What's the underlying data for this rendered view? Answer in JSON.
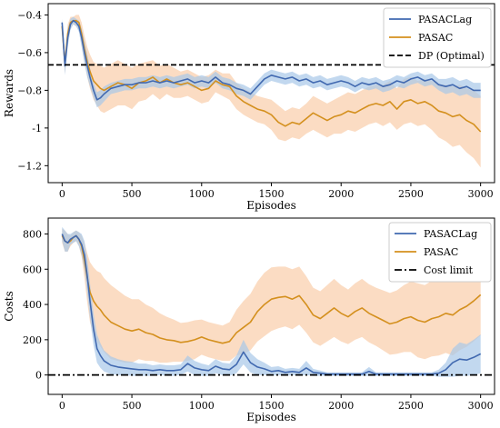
{
  "colors": {
    "pasaclag": "#4169b0",
    "pasac": "#d4901e",
    "pasaclag_band": "#a8c8e8",
    "pasac_band": "#f9c9a3"
  },
  "chart_data": [
    {
      "type": "line",
      "xlabel": "Episodes",
      "ylabel": "Rewards",
      "xlim": [
        -100,
        3100
      ],
      "ylim": [
        -1.29,
        -0.34
      ],
      "xticks": [
        0,
        500,
        1000,
        1500,
        2000,
        2500,
        3000
      ],
      "yticks": [
        -1.2,
        -1.0,
        -0.8,
        -0.6,
        -0.4
      ],
      "grid": false,
      "legend_position": "top-right",
      "series": [
        {
          "name": "PASACLag",
          "color_key": "pasaclag",
          "x": [
            0,
            20,
            40,
            60,
            80,
            100,
            120,
            140,
            160,
            180,
            200,
            225,
            250,
            275,
            300,
            350,
            400,
            450,
            500,
            550,
            600,
            650,
            700,
            750,
            800,
            850,
            900,
            950,
            1000,
            1050,
            1100,
            1150,
            1200,
            1250,
            1300,
            1350,
            1400,
            1450,
            1500,
            1550,
            1600,
            1650,
            1700,
            1750,
            1800,
            1850,
            1900,
            1950,
            2000,
            2050,
            2100,
            2150,
            2200,
            2250,
            2300,
            2350,
            2400,
            2450,
            2500,
            2550,
            2600,
            2650,
            2700,
            2750,
            2800,
            2850,
            2900,
            2950,
            3000
          ],
          "y": [
            -0.44,
            -0.67,
            -0.52,
            -0.45,
            -0.43,
            -0.44,
            -0.46,
            -0.52,
            -0.6,
            -0.67,
            -0.73,
            -0.8,
            -0.85,
            -0.84,
            -0.82,
            -0.79,
            -0.78,
            -0.77,
            -0.77,
            -0.76,
            -0.76,
            -0.75,
            -0.76,
            -0.75,
            -0.76,
            -0.75,
            -0.74,
            -0.76,
            -0.75,
            -0.76,
            -0.73,
            -0.76,
            -0.77,
            -0.79,
            -0.8,
            -0.82,
            -0.78,
            -0.74,
            -0.72,
            -0.73,
            -0.74,
            -0.73,
            -0.75,
            -0.74,
            -0.76,
            -0.75,
            -0.77,
            -0.76,
            -0.75,
            -0.76,
            -0.78,
            -0.76,
            -0.77,
            -0.76,
            -0.78,
            -0.77,
            -0.75,
            -0.76,
            -0.74,
            -0.73,
            -0.75,
            -0.74,
            -0.77,
            -0.78,
            -0.77,
            -0.79,
            -0.78,
            -0.8,
            -0.8
          ],
          "band": [
            0.02,
            0.05,
            0.05,
            0.03,
            0.02,
            0.02,
            0.03,
            0.05,
            0.06,
            0.06,
            0.05,
            0.04,
            0.04,
            0.04,
            0.04,
            0.03,
            0.03,
            0.03,
            0.03,
            0.03,
            0.03,
            0.03,
            0.03,
            0.03,
            0.03,
            0.03,
            0.03,
            0.03,
            0.03,
            0.03,
            0.03,
            0.03,
            0.03,
            0.03,
            0.03,
            0.03,
            0.03,
            0.03,
            0.03,
            0.03,
            0.03,
            0.03,
            0.03,
            0.03,
            0.03,
            0.03,
            0.03,
            0.03,
            0.03,
            0.03,
            0.03,
            0.03,
            0.03,
            0.03,
            0.03,
            0.03,
            0.03,
            0.03,
            0.03,
            0.03,
            0.03,
            0.03,
            0.03,
            0.04,
            0.04,
            0.04,
            0.04,
            0.04,
            0.04
          ]
        },
        {
          "name": "PASAC",
          "color_key": "pasac",
          "x": [
            0,
            20,
            40,
            60,
            80,
            100,
            120,
            140,
            160,
            180,
            200,
            225,
            250,
            275,
            300,
            350,
            400,
            450,
            500,
            550,
            600,
            650,
            700,
            750,
            800,
            850,
            900,
            950,
            1000,
            1050,
            1100,
            1150,
            1200,
            1250,
            1300,
            1350,
            1400,
            1450,
            1500,
            1550,
            1600,
            1650,
            1700,
            1750,
            1800,
            1850,
            1900,
            1950,
            2000,
            2050,
            2100,
            2150,
            2200,
            2250,
            2300,
            2350,
            2400,
            2450,
            2500,
            2550,
            2600,
            2650,
            2700,
            2750,
            2800,
            2850,
            2900,
            2950,
            3000
          ],
          "y": [
            -0.46,
            -0.66,
            -0.5,
            -0.44,
            -0.43,
            -0.43,
            -0.44,
            -0.5,
            -0.58,
            -0.65,
            -0.7,
            -0.75,
            -0.77,
            -0.79,
            -0.8,
            -0.78,
            -0.76,
            -0.77,
            -0.79,
            -0.76,
            -0.75,
            -0.73,
            -0.76,
            -0.74,
            -0.76,
            -0.77,
            -0.76,
            -0.78,
            -0.8,
            -0.79,
            -0.75,
            -0.77,
            -0.78,
            -0.83,
            -0.86,
            -0.88,
            -0.9,
            -0.91,
            -0.93,
            -0.97,
            -0.99,
            -0.97,
            -0.98,
            -0.95,
            -0.92,
            -0.94,
            -0.96,
            -0.94,
            -0.93,
            -0.91,
            -0.92,
            -0.9,
            -0.88,
            -0.87,
            -0.88,
            -0.86,
            -0.9,
            -0.86,
            -0.85,
            -0.87,
            -0.86,
            -0.88,
            -0.91,
            -0.92,
            -0.94,
            -0.93,
            -0.96,
            -0.98,
            -1.02
          ],
          "band": [
            0.02,
            0.05,
            0.05,
            0.03,
            0.02,
            0.03,
            0.04,
            0.06,
            0.07,
            0.08,
            0.09,
            0.1,
            0.11,
            0.12,
            0.12,
            0.12,
            0.12,
            0.11,
            0.11,
            0.1,
            0.1,
            0.09,
            0.09,
            0.08,
            0.08,
            0.07,
            0.07,
            0.07,
            0.07,
            0.07,
            0.06,
            0.06,
            0.07,
            0.07,
            0.07,
            0.07,
            0.07,
            0.07,
            0.08,
            0.09,
            0.08,
            0.08,
            0.08,
            0.08,
            0.09,
            0.09,
            0.09,
            0.09,
            0.1,
            0.1,
            0.1,
            0.1,
            0.1,
            0.1,
            0.11,
            0.11,
            0.11,
            0.12,
            0.12,
            0.12,
            0.12,
            0.13,
            0.14,
            0.15,
            0.16,
            0.16,
            0.17,
            0.18,
            0.19
          ]
        }
      ],
      "reference_line": {
        "name": "DP (Optimal)",
        "y": -0.665,
        "style": "dashed"
      }
    },
    {
      "type": "line",
      "xlabel": "Episodes",
      "ylabel": "Costs",
      "xlim": [
        -100,
        3100
      ],
      "ylim": [
        -110,
        890
      ],
      "xticks": [
        0,
        500,
        1000,
        1500,
        2000,
        2500,
        3000
      ],
      "yticks": [
        0,
        200,
        400,
        600,
        800
      ],
      "grid": false,
      "legend_position": "top-right",
      "series": [
        {
          "name": "PASACLag",
          "color_key": "pasaclag",
          "x": [
            0,
            20,
            40,
            60,
            80,
            100,
            120,
            140,
            160,
            180,
            200,
            225,
            250,
            275,
            300,
            350,
            400,
            450,
            500,
            550,
            600,
            650,
            700,
            750,
            800,
            850,
            900,
            950,
            1000,
            1050,
            1100,
            1150,
            1200,
            1250,
            1300,
            1350,
            1400,
            1450,
            1500,
            1550,
            1600,
            1650,
            1700,
            1750,
            1800,
            1850,
            1900,
            1950,
            2000,
            2050,
            2100,
            2150,
            2200,
            2250,
            2300,
            2350,
            2400,
            2450,
            2500,
            2550,
            2600,
            2650,
            2700,
            2750,
            2800,
            2850,
            2900,
            2950,
            3000
          ],
          "y": [
            800,
            760,
            750,
            770,
            780,
            790,
            770,
            740,
            680,
            560,
            420,
            260,
            150,
            110,
            80,
            55,
            45,
            40,
            35,
            30,
            30,
            25,
            30,
            25,
            25,
            30,
            65,
            40,
            30,
            25,
            50,
            35,
            30,
            60,
            130,
            70,
            45,
            35,
            20,
            25,
            15,
            20,
            15,
            40,
            15,
            10,
            5,
            5,
            5,
            5,
            5,
            5,
            20,
            5,
            5,
            5,
            5,
            5,
            5,
            5,
            5,
            5,
            10,
            30,
            70,
            90,
            85,
            100,
            120
          ],
          "band": [
            40,
            60,
            50,
            30,
            30,
            30,
            40,
            60,
            80,
            100,
            100,
            90,
            80,
            70,
            60,
            50,
            45,
            40,
            40,
            35,
            35,
            30,
            30,
            30,
            30,
            30,
            45,
            40,
            35,
            30,
            40,
            35,
            35,
            50,
            70,
            55,
            45,
            35,
            25,
            25,
            20,
            20,
            20,
            40,
            20,
            15,
            10,
            10,
            10,
            10,
            10,
            10,
            25,
            10,
            10,
            10,
            10,
            10,
            10,
            10,
            10,
            10,
            20,
            40,
            80,
            95,
            90,
            100,
            110
          ]
        },
        {
          "name": "PASAC",
          "color_key": "pasac",
          "x": [
            0,
            20,
            40,
            60,
            80,
            100,
            120,
            140,
            160,
            180,
            200,
            225,
            250,
            275,
            300,
            350,
            400,
            450,
            500,
            550,
            600,
            650,
            700,
            750,
            800,
            850,
            900,
            950,
            1000,
            1050,
            1100,
            1150,
            1200,
            1250,
            1300,
            1350,
            1400,
            1450,
            1500,
            1550,
            1600,
            1650,
            1700,
            1750,
            1800,
            1850,
            1900,
            1950,
            2000,
            2050,
            2100,
            2150,
            2200,
            2250,
            2300,
            2350,
            2400,
            2450,
            2500,
            2550,
            2600,
            2650,
            2700,
            2750,
            2800,
            2850,
            2900,
            2950,
            3000
          ],
          "y": [
            790,
            760,
            750,
            760,
            780,
            790,
            770,
            730,
            650,
            550,
            470,
            420,
            390,
            370,
            340,
            300,
            280,
            260,
            250,
            260,
            240,
            230,
            210,
            200,
            195,
            185,
            190,
            200,
            215,
            200,
            190,
            180,
            190,
            240,
            270,
            300,
            360,
            400,
            430,
            440,
            445,
            430,
            450,
            400,
            340,
            320,
            350,
            380,
            350,
            330,
            360,
            380,
            350,
            330,
            310,
            290,
            300,
            320,
            330,
            310,
            300,
            320,
            330,
            350,
            340,
            370,
            390,
            420,
            455
          ],
          "band": [
            40,
            60,
            50,
            30,
            30,
            30,
            40,
            60,
            100,
            140,
            170,
            190,
            200,
            210,
            210,
            210,
            200,
            190,
            180,
            170,
            160,
            150,
            140,
            130,
            120,
            110,
            110,
            110,
            100,
            100,
            100,
            100,
            110,
            130,
            150,
            160,
            170,
            180,
            180,
            175,
            170,
            170,
            165,
            160,
            155,
            155,
            160,
            165,
            160,
            155,
            160,
            165,
            165,
            165,
            170,
            175,
            180,
            190,
            200,
            210,
            210,
            215,
            220,
            225,
            230,
            230,
            230,
            230,
            230
          ]
        }
      ],
      "reference_line": {
        "name": "Cost limit",
        "y": 0,
        "style": "dashdot"
      }
    }
  ]
}
